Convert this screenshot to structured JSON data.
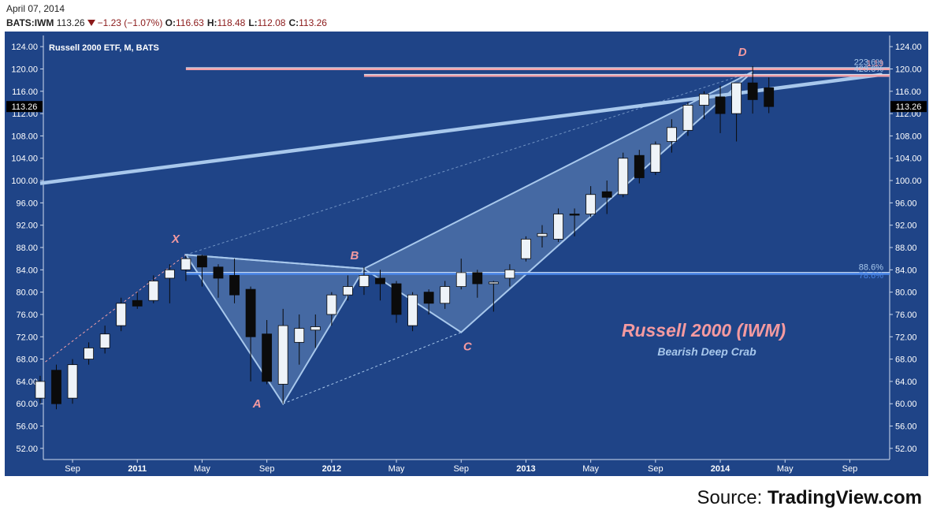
{
  "header": {
    "date": "April 07, 2014",
    "symbol": "BATS:IWM",
    "last": "113.26",
    "change": "−1.23 (−1.07%)",
    "open_label": "O:",
    "open": "116.63",
    "high_label": "H:",
    "high": "118.48",
    "low_label": "L:",
    "low": "112.08",
    "close_label": "C:",
    "close": "113.26"
  },
  "source": {
    "prefix": "Source: ",
    "brand": "TradingView.com"
  },
  "colors": {
    "background": "#1f4487",
    "up_candle": "#eef3f8",
    "down_candle": "#0b0b0b",
    "pattern_line": "#a8c8ec",
    "pattern_fill": "#a8c8ec",
    "fib_pink": "#f0a0a8",
    "fib_blue": "#4a86e8",
    "trendline": "#a8c8ec",
    "point_label": "#f49aa0",
    "title_pink": "#f49aa0",
    "subtitle_blue": "#a8c8ec",
    "axis_text": "#ffffff"
  },
  "chart_data": {
    "type": "candlestick",
    "title": "Russell 2000 ETF, M, BATS",
    "overlay_title": "Russell 2000 (IWM)",
    "overlay_subtitle": "Bearish Deep Crab",
    "ylim": [
      50,
      126
    ],
    "y_ticks": [
      52,
      56,
      60,
      64,
      68,
      72,
      76,
      80,
      84,
      88,
      92,
      96,
      100,
      104,
      108,
      112,
      116,
      120,
      124
    ],
    "y_tick_labels": [
      "52.00",
      "56.00",
      "60.00",
      "64.00",
      "68.00",
      "72.00",
      "76.00",
      "80.00",
      "84.00",
      "88.00",
      "92.00",
      "96.00",
      "100.00",
      "104.00",
      "108.00",
      "112.00",
      "116.00",
      "120.00",
      "124.00"
    ],
    "last_price_label": "113.26",
    "x_labels": [
      {
        "month": "2010-09",
        "label": "Sep",
        "bold": false
      },
      {
        "month": "2011-01",
        "label": "2011",
        "bold": true
      },
      {
        "month": "2011-05",
        "label": "May",
        "bold": false
      },
      {
        "month": "2011-09",
        "label": "Sep",
        "bold": false
      },
      {
        "month": "2012-01",
        "label": "2012",
        "bold": true
      },
      {
        "month": "2012-05",
        "label": "May",
        "bold": false
      },
      {
        "month": "2012-09",
        "label": "Sep",
        "bold": false
      },
      {
        "month": "2013-01",
        "label": "2013",
        "bold": true
      },
      {
        "month": "2013-05",
        "label": "May",
        "bold": false
      },
      {
        "month": "2013-09",
        "label": "Sep",
        "bold": false
      },
      {
        "month": "2014-01",
        "label": "2014",
        "bold": true
      },
      {
        "month": "2014-05",
        "label": "May",
        "bold": false
      },
      {
        "month": "2014-09",
        "label": "Sep",
        "bold": false
      }
    ],
    "candles": [
      {
        "month": "2010-07",
        "open": 61,
        "high": 65,
        "low": 60,
        "close": 64
      },
      {
        "month": "2010-08",
        "open": 66,
        "high": 67,
        "low": 59,
        "close": 60
      },
      {
        "month": "2010-09",
        "open": 61,
        "high": 68,
        "low": 60,
        "close": 67
      },
      {
        "month": "2010-10",
        "open": 68,
        "high": 71,
        "low": 67,
        "close": 70
      },
      {
        "month": "2010-11",
        "open": 70,
        "high": 74,
        "low": 69,
        "close": 72.5
      },
      {
        "month": "2010-12",
        "open": 74,
        "high": 79,
        "low": 73,
        "close": 78
      },
      {
        "month": "2011-01",
        "open": 78.5,
        "high": 80,
        "low": 77,
        "close": 77.5
      },
      {
        "month": "2011-02",
        "open": 78.5,
        "high": 83,
        "low": 78,
        "close": 82
      },
      {
        "month": "2011-03",
        "open": 82.5,
        "high": 85,
        "low": 78,
        "close": 84
      },
      {
        "month": "2011-04",
        "open": 84,
        "high": 86.5,
        "low": 82,
        "close": 86
      },
      {
        "month": "2011-05",
        "open": 86.5,
        "high": 86.7,
        "low": 81,
        "close": 84.5
      },
      {
        "month": "2011-06",
        "open": 84.5,
        "high": 85,
        "low": 79,
        "close": 82.5
      },
      {
        "month": "2011-07",
        "open": 83,
        "high": 86,
        "low": 78,
        "close": 79.5
      },
      {
        "month": "2011-08",
        "open": 80.5,
        "high": 81,
        "low": 64,
        "close": 72
      },
      {
        "month": "2011-09",
        "open": 72.5,
        "high": 75,
        "low": 63.5,
        "close": 64
      },
      {
        "month": "2011-10",
        "open": 63.5,
        "high": 77,
        "low": 60,
        "close": 74
      },
      {
        "month": "2011-11",
        "open": 71,
        "high": 76,
        "low": 67,
        "close": 73.5
      },
      {
        "month": "2011-12",
        "open": 73.2,
        "high": 76,
        "low": 70,
        "close": 73.8
      },
      {
        "month": "2012-01",
        "open": 76,
        "high": 80,
        "low": 74,
        "close": 79.5
      },
      {
        "month": "2012-02",
        "open": 79.5,
        "high": 83,
        "low": 78.5,
        "close": 81
      },
      {
        "month": "2012-03",
        "open": 81,
        "high": 84.5,
        "low": 79.5,
        "close": 83
      },
      {
        "month": "2012-04",
        "open": 82.5,
        "high": 84,
        "low": 78.5,
        "close": 81.5
      },
      {
        "month": "2012-05",
        "open": 81.5,
        "high": 82,
        "low": 74.5,
        "close": 76
      },
      {
        "month": "2012-06",
        "open": 74,
        "high": 80,
        "low": 73,
        "close": 79.5
      },
      {
        "month": "2012-07",
        "open": 80,
        "high": 80.5,
        "low": 76,
        "close": 78
      },
      {
        "month": "2012-08",
        "open": 78,
        "high": 82,
        "low": 77,
        "close": 81
      },
      {
        "month": "2012-09",
        "open": 81,
        "high": 86,
        "low": 80.5,
        "close": 83.5
      },
      {
        "month": "2012-10",
        "open": 83.5,
        "high": 84,
        "low": 79,
        "close": 81.5
      },
      {
        "month": "2012-11",
        "open": 81.5,
        "high": 82,
        "low": 76.5,
        "close": 81.8
      },
      {
        "month": "2012-12",
        "open": 82.5,
        "high": 85,
        "low": 81,
        "close": 84
      },
      {
        "month": "2013-01",
        "open": 86,
        "high": 90,
        "low": 85.5,
        "close": 89.5
      },
      {
        "month": "2013-02",
        "open": 90,
        "high": 92,
        "low": 88,
        "close": 90.5
      },
      {
        "month": "2013-03",
        "open": 89.5,
        "high": 95,
        "low": 89,
        "close": 94
      },
      {
        "month": "2013-04",
        "open": 94,
        "high": 95,
        "low": 90,
        "close": 93.8
      },
      {
        "month": "2013-05",
        "open": 94,
        "high": 99,
        "low": 93.5,
        "close": 97.5
      },
      {
        "month": "2013-06",
        "open": 98,
        "high": 100,
        "low": 94,
        "close": 97
      },
      {
        "month": "2013-07",
        "open": 97.5,
        "high": 105,
        "low": 97,
        "close": 104
      },
      {
        "month": "2013-08",
        "open": 104.5,
        "high": 105.5,
        "low": 99.5,
        "close": 100.5
      },
      {
        "month": "2013-09",
        "open": 101.5,
        "high": 107,
        "low": 101,
        "close": 106.5
      },
      {
        "month": "2013-10",
        "open": 107,
        "high": 111,
        "low": 105,
        "close": 109.5
      },
      {
        "month": "2013-11",
        "open": 109,
        "high": 114,
        "low": 108,
        "close": 113.5
      },
      {
        "month": "2013-12",
        "open": 113.5,
        "high": 116,
        "low": 111,
        "close": 115.5
      },
      {
        "month": "2014-01",
        "open": 115,
        "high": 117,
        "low": 108.5,
        "close": 112
      },
      {
        "month": "2014-02",
        "open": 112,
        "high": 117.5,
        "low": 107,
        "close": 117.5
      },
      {
        "month": "2014-03",
        "open": 117.5,
        "high": 120.5,
        "low": 112,
        "close": 114.5
      },
      {
        "month": "2014-04",
        "open": 116.63,
        "high": 118.48,
        "low": 112.08,
        "close": 113.26
      }
    ],
    "harmonic_pattern": {
      "points": [
        {
          "name": "X",
          "month": "2011-04",
          "price": 86.7
        },
        {
          "name": "A",
          "month": "2011-10",
          "price": 60
        },
        {
          "name": "B",
          "month": "2012-03",
          "price": 84.2
        },
        {
          "name": "C",
          "month": "2012-09",
          "price": 72.8
        },
        {
          "name": "D",
          "month": "2014-03",
          "price": 119.5
        }
      ]
    },
    "trendline": {
      "from": {
        "month": "2010-07",
        "price": 99.5
      },
      "to": {
        "month": "2014-11",
        "price": 119
      }
    },
    "fib_levels": [
      {
        "label": "223.6%",
        "price": 120.0,
        "from_month": "2011-04"
      },
      {
        "label": "423.6%",
        "price": 118.8,
        "from_month": "2012-03"
      },
      {
        "label": "88.6%",
        "price": 83.3,
        "from_month": "2011-04"
      }
    ],
    "fib_side_labels": [
      "1.13",
      "78.6%"
    ]
  }
}
